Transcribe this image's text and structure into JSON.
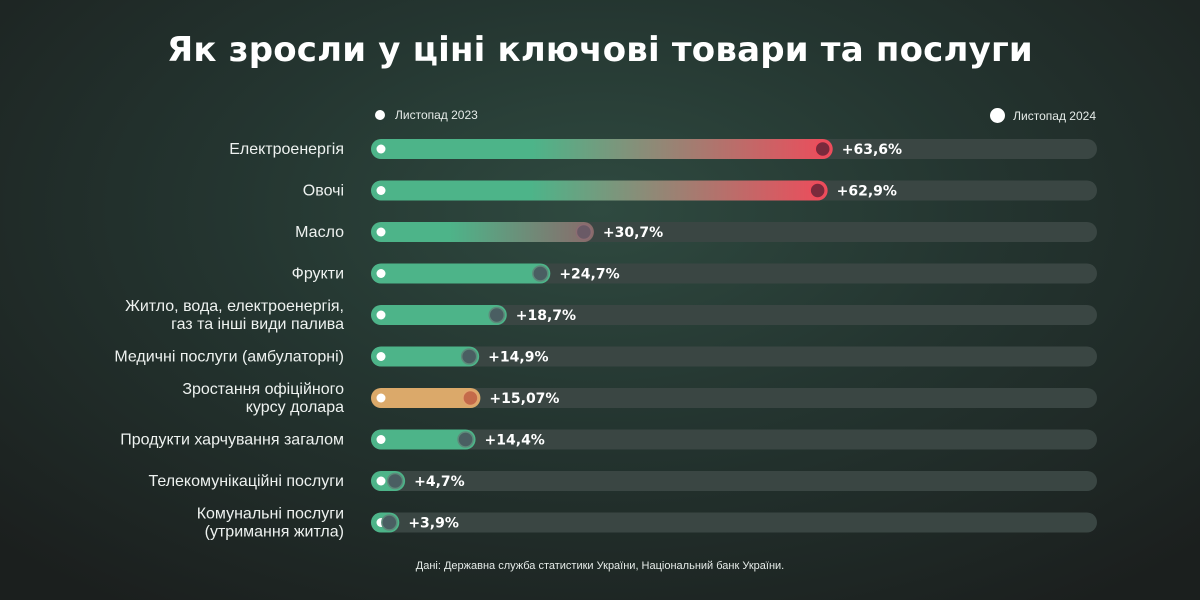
{
  "title": "Як зросли у ціні ключові товари та послуги",
  "legend": {
    "start": "Листопад 2023",
    "end": "Листопад 2024"
  },
  "source": "Дані: Державна служба статистики України, Національний банк України.",
  "colors": {
    "bar_start": "#4db489",
    "bar_hot": "#ef4b5b",
    "bar_neutral_end": "#4a5e62",
    "bar_orange": "#dba96a",
    "bar_orange_end": "#c46a4a",
    "track": "#3a4643",
    "start_dot": "#ffffff"
  },
  "chart_data": {
    "type": "bar",
    "orientation": "horizontal",
    "xlim": [
      0,
      100
    ],
    "grid": false,
    "title": "Як зросли у ціні ключові товари та послуги",
    "categories": [
      [
        "Електроенергія"
      ],
      [
        "Овочі"
      ],
      [
        "Масло"
      ],
      [
        "Фрукти"
      ],
      [
        "Житло, вода, електроенергія,",
        "газ та інші види палива"
      ],
      [
        "Медичні послуги (амбулаторні)"
      ],
      [
        "Зростання офіційного",
        "курсу долара"
      ],
      [
        "Продукти харчування загалом"
      ],
      [
        "Телекомунікаційні послуги"
      ],
      [
        "Комунальні послуги",
        "(утримання житла)"
      ]
    ],
    "values": [
      63.6,
      62.9,
      30.7,
      24.7,
      18.7,
      14.9,
      15.07,
      14.4,
      4.7,
      3.9
    ],
    "value_labels": [
      "+63,6%",
      "+62,9%",
      "+30,7%",
      "+24,7%",
      "+18,7%",
      "+14,9%",
      "+15,07%",
      "+14,4%",
      "+4,7%",
      "+3,9%"
    ],
    "styles": [
      "hot",
      "hot",
      "warm",
      "neutral",
      "neutral",
      "neutral",
      "orange",
      "neutral",
      "neutral",
      "neutral"
    ]
  }
}
